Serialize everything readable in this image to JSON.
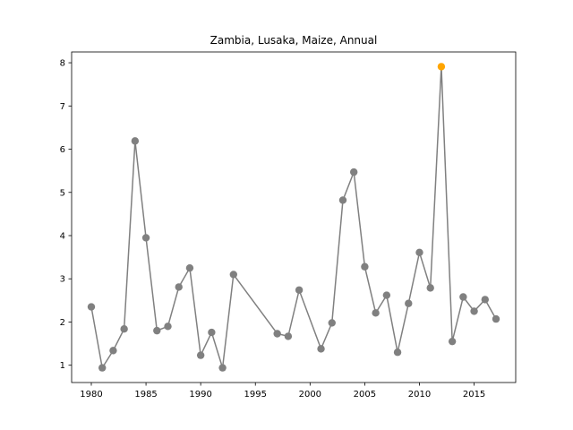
{
  "chart_data": {
    "type": "line",
    "title": "Zambia, Lusaka, Maize, Annual",
    "xlabel": "",
    "ylabel": "",
    "xlim": [
      1978.2,
      2018.8
    ],
    "ylim": [
      0.6,
      8.25
    ],
    "xticks": [
      1980,
      1985,
      1990,
      1995,
      2000,
      2005,
      2010,
      2015
    ],
    "yticks": [
      1,
      2,
      3,
      4,
      5,
      6,
      7,
      8
    ],
    "grid": false,
    "line_color": "#808080",
    "marker_color": "#808080",
    "highlight_color": "#ffa500",
    "highlight_x": 2012,
    "series": [
      {
        "x": [
          1980,
          1981,
          1982,
          1983,
          1984,
          1985,
          1986,
          1987,
          1988,
          1989,
          1990,
          1991,
          1992,
          1993,
          1997,
          1998,
          1999,
          2001,
          2002,
          2003,
          2004,
          2005,
          2006,
          2007,
          2008,
          2009,
          2010,
          2011,
          2012,
          2013,
          2014,
          2015,
          2016,
          2017
        ],
        "values": [
          2.35,
          0.94,
          1.34,
          1.84,
          6.19,
          3.95,
          1.8,
          1.9,
          2.81,
          3.25,
          1.23,
          1.76,
          0.94,
          3.1,
          1.73,
          1.67,
          2.74,
          1.38,
          1.98,
          4.82,
          5.47,
          3.28,
          2.21,
          2.62,
          1.3,
          2.43,
          3.61,
          2.79,
          7.91,
          1.55,
          2.58,
          2.25,
          2.52,
          2.07
        ]
      }
    ]
  }
}
